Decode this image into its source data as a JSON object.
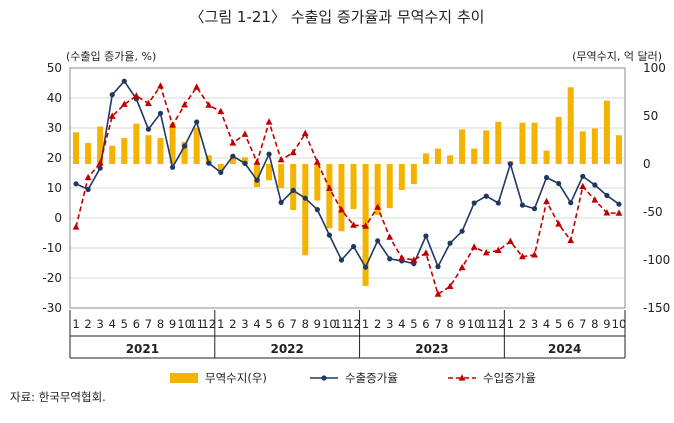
{
  "title": "〈그림 1-21〉 수출입 증가율과 무역수지 추이",
  "source": "자료: 한국무역협회.",
  "chart_data": {
    "type": "bar+line",
    "left_axis": {
      "label": "(수출입 증가율, %)",
      "ylim": [
        -30,
        50
      ],
      "ticks": [
        50,
        40,
        30,
        20,
        10,
        0,
        -10,
        -20,
        -30
      ]
    },
    "right_axis": {
      "label": "(무역수지, 억 달러)",
      "ylim": [
        -150,
        100
      ],
      "ticks": [
        100,
        50,
        0,
        -50,
        -100,
        -150
      ]
    },
    "month_labels": [
      "1",
      "2",
      "3",
      "4",
      "5",
      "6",
      "7",
      "8",
      "9",
      "10",
      "11",
      "12",
      "1",
      "2",
      "3",
      "4",
      "5",
      "6",
      "7",
      "8",
      "9",
      "10",
      "11",
      "12",
      "1",
      "2",
      "3",
      "4",
      "5",
      "6",
      "7",
      "8",
      "9",
      "10",
      "11",
      "12",
      "1",
      "2",
      "3",
      "4",
      "5",
      "6",
      "7",
      "8",
      "9",
      "10"
    ],
    "years": [
      {
        "label": "2021",
        "start": 0,
        "count": 12
      },
      {
        "label": "2022",
        "start": 12,
        "count": 12
      },
      {
        "label": "2023",
        "start": 24,
        "count": 12
      },
      {
        "label": "2024",
        "start": 36,
        "count": 10
      }
    ],
    "series": [
      {
        "name": "무역수지(우)",
        "type": "bar",
        "axis": "right",
        "color": "#F5B301",
        "values": [
          33,
          22,
          39,
          19,
          27,
          42,
          30,
          27,
          42,
          23,
          38,
          9,
          -7,
          8,
          7,
          -24,
          -17,
          -25,
          -48,
          -95,
          -38,
          -67,
          -70,
          -47,
          -127,
          -53,
          -46,
          -27,
          -21,
          11,
          16,
          9,
          36,
          16,
          35,
          44,
          3,
          43,
          43,
          14,
          49,
          80,
          34,
          37,
          66,
          30
        ]
      },
      {
        "name": "수출증가율",
        "type": "line",
        "axis": "left",
        "color": "#1F3864",
        "marker": "circle",
        "values": [
          11.4,
          9.5,
          16.6,
          41.1,
          45.6,
          39.7,
          29.6,
          34.9,
          16.9,
          24.0,
          32.0,
          18.3,
          15.2,
          20.6,
          18.2,
          12.6,
          21.3,
          5.2,
          9.2,
          6.6,
          2.8,
          -5.7,
          -14.0,
          -9.5,
          -16.4,
          -7.6,
          -13.6,
          -14.3,
          -15.2,
          -6.0,
          -16.2,
          -8.4,
          -4.4,
          5.0,
          7.3,
          5.0,
          18.0,
          4.3,
          3.1,
          13.5,
          11.5,
          5.1,
          13.9,
          11.0,
          7.5,
          4.6
        ]
      },
      {
        "name": "수입증가율",
        "type": "line",
        "axis": "left",
        "color": "#C00000",
        "marker": "triangle",
        "dash": true,
        "values": [
          -3.0,
          13.5,
          18.3,
          33.9,
          37.9,
          40.7,
          38.2,
          44.0,
          31.0,
          37.7,
          43.6,
          37.6,
          35.5,
          25.0,
          27.9,
          18.6,
          32.0,
          19.4,
          21.8,
          28.2,
          18.6,
          9.9,
          2.7,
          -2.4,
          -2.7,
          3.6,
          -6.4,
          -13.3,
          -14.0,
          -11.7,
          -25.4,
          -22.8,
          -16.5,
          -9.7,
          -11.6,
          -10.8,
          -7.8,
          -12.9,
          -12.3,
          5.5,
          -2.0,
          -7.5,
          10.5,
          6.0,
          1.7,
          1.6
        ]
      }
    ],
    "legend": {
      "placement": "bottom"
    }
  }
}
